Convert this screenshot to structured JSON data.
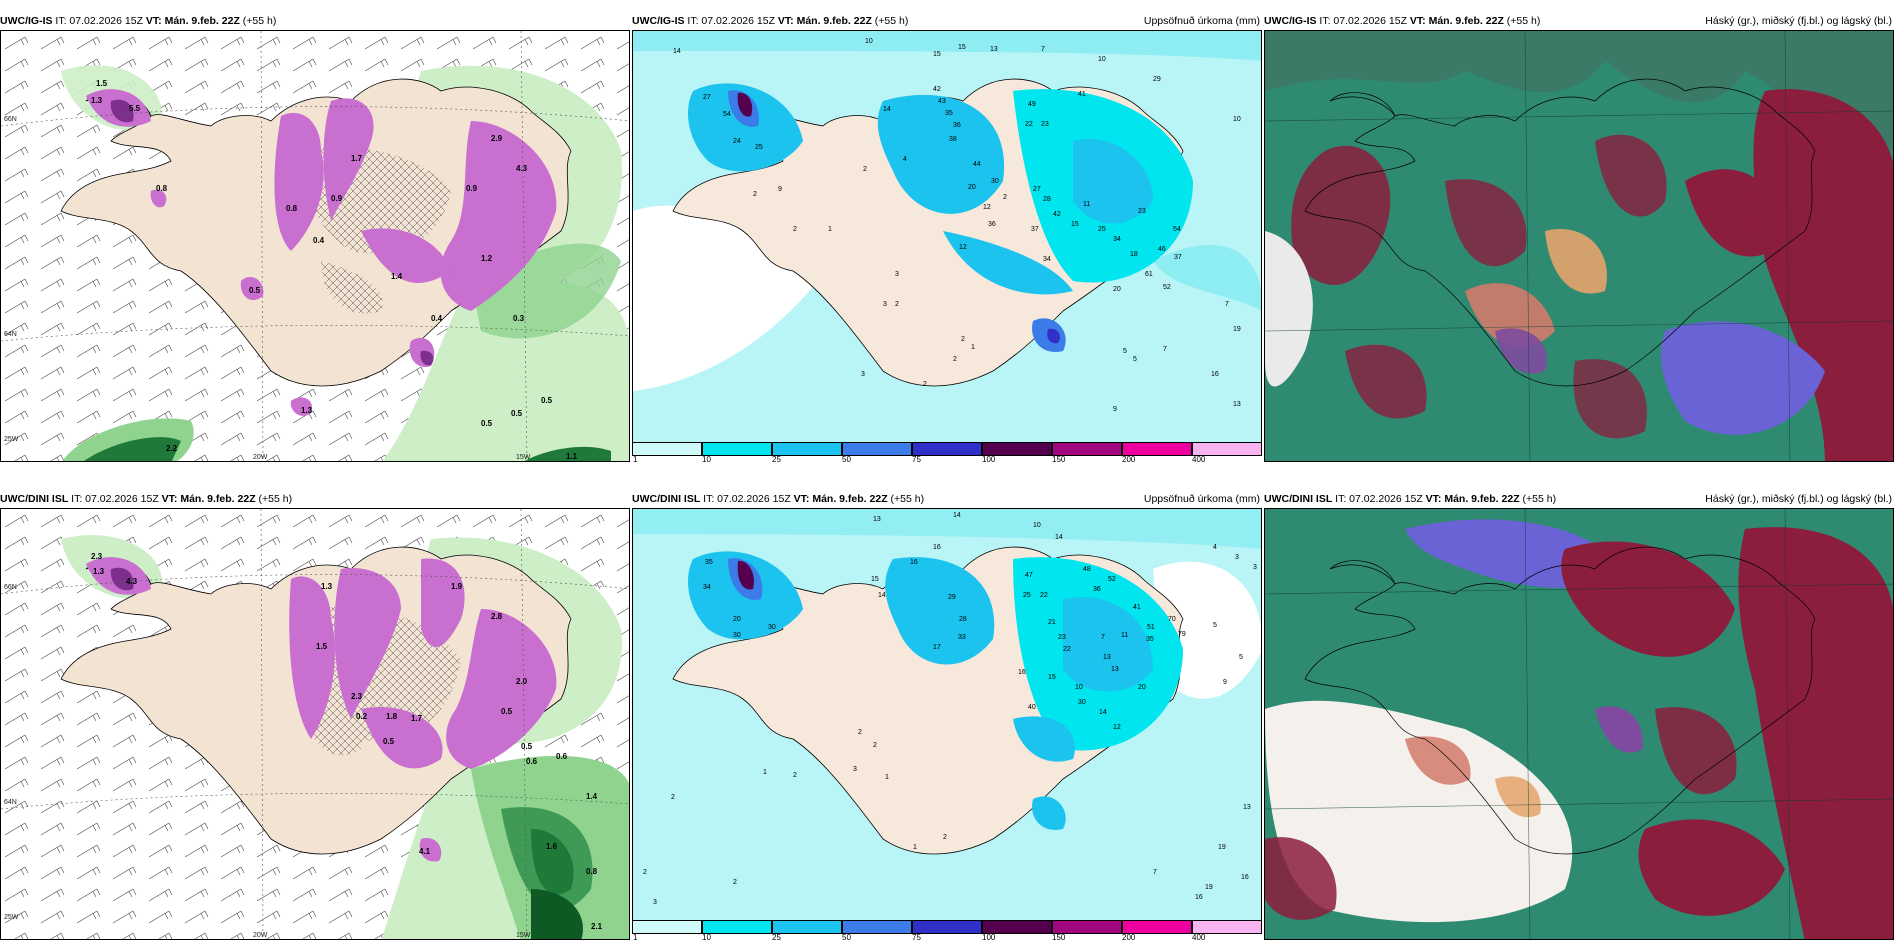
{
  "panels": [
    {
      "model": "UWC/IG-IS",
      "it": "IT: 07.02.2026 15Z",
      "vt": "VT: Mán. 9.feb. 22Z",
      "lead": "(+55 h)",
      "right": "",
      "lat1": "66N",
      "lat2": "64N",
      "lat3": "25W",
      "lon1": "20W",
      "lon2": "15W",
      "values": [
        "1.5",
        "1.3",
        "5.5",
        "0.8",
        "0.4",
        "1.7",
        "0.8",
        "2.9",
        "4.3",
        "0.9",
        "1.2",
        "0.5",
        "0.4",
        "1.3",
        "0.5",
        "0.5",
        "0.5",
        "2.2",
        "1.1",
        "1.4",
        "0.9",
        "0.3"
      ]
    },
    {
      "model": "UWC/IG-IS",
      "it": "IT: 07.02.2026 15Z",
      "vt": "VT: Mán. 9.feb. 22Z",
      "lead": "(+55 h)",
      "right": "Uppsöfnuð úrkoma (mm)",
      "values": [
        "14",
        "10",
        "15",
        "15",
        "13",
        "7",
        "42",
        "27",
        "54",
        "24",
        "25",
        "43",
        "35",
        "36",
        "38",
        "49",
        "22",
        "23",
        "41",
        "29",
        "2",
        "4",
        "1",
        "2",
        "2",
        "14",
        "9",
        "2",
        "20",
        "30",
        "10",
        "12",
        "44",
        "27",
        "28",
        "11",
        "12",
        "34",
        "36",
        "37",
        "42",
        "15",
        "25",
        "34",
        "23",
        "18",
        "54",
        "46",
        "37",
        "61",
        "52",
        "20",
        "5",
        "3",
        "3",
        "2",
        "2",
        "1",
        "2",
        "3",
        "2",
        "16",
        "5",
        "7",
        "9",
        "13",
        "19",
        "7",
        "10"
      ]
    },
    {
      "model": "UWC/IG-IS",
      "it": "IT: 07.02.2026 15Z",
      "vt": "VT: Mán. 9.feb. 22Z",
      "lead": "(+55 h)",
      "right": "Háský (gr.), miðský (fj.bl.) og lágský (bl.)"
    },
    {
      "model": "UWC/DINI ISL",
      "it": "IT: 07.02.2026 15Z",
      "vt": "VT: Mán. 9.feb. 22Z",
      "lead": "(+55 h)",
      "right": "",
      "lat1": "66N",
      "lat2": "64N",
      "lat3": "25W",
      "lon1": "20W",
      "lon2": "15W",
      "values": [
        "2.3",
        "1.3",
        "4.3",
        "1.9",
        "2.8",
        "1.3",
        "1.5",
        "2.3",
        "0.5",
        "1.8",
        "2.0",
        "1.7",
        "0.5",
        "0.6",
        "0.6",
        "1.4",
        "1.6",
        "0.8",
        "2.1",
        "4.1",
        "0.2",
        "0.5"
      ]
    },
    {
      "model": "UWC/DINI ISL",
      "it": "IT: 07.02.2026 15Z",
      "vt": "VT: Mán. 9.feb. 22Z",
      "lead": "(+55 h)",
      "right": "Uppsöfnuð úrkoma (mm)",
      "values": [
        "13",
        "14",
        "10",
        "14",
        "16",
        "35",
        "34",
        "30",
        "20",
        "15",
        "14",
        "16",
        "29",
        "28",
        "47",
        "25",
        "22",
        "48",
        "36",
        "52",
        "30",
        "17",
        "33",
        "21",
        "23",
        "22",
        "7",
        "11",
        "16",
        "15",
        "10",
        "13",
        "13",
        "40",
        "30",
        "14",
        "12",
        "20",
        "41",
        "51",
        "35",
        "70",
        "79",
        "9",
        "5",
        "3",
        "4",
        "2",
        "2",
        "1",
        "2",
        "3",
        "1",
        "2",
        "2",
        "3",
        "2",
        "16",
        "19",
        "19",
        "13",
        "7",
        "16",
        "5",
        "3",
        "1",
        "2"
      ]
    },
    {
      "model": "UWC/DINI ISL",
      "it": "IT: 07.02.2026 15Z",
      "vt": "VT: Mán. 9.feb. 22Z",
      "lead": "(+55 h)",
      "right": "Háský (gr.), miðský (fj.bl.) og lágský (bl.)"
    }
  ],
  "colorbar": {
    "labels": [
      "1",
      "10",
      "25",
      "50",
      "75",
      "100",
      "150",
      "200",
      "400"
    ],
    "colors": [
      "#cffafa",
      "#00e5ee",
      "#1cc3ee",
      "#3b7ce8",
      "#3030c8",
      "#55004f",
      "#a0067e",
      "#ee00a0",
      "#f8b4f0"
    ]
  },
  "colors": {
    "land": "#f3e3d3",
    "ocean_precip": "#b9f5f7",
    "green_light": "#cdeec7",
    "green_mid": "#8fd38f",
    "green_dark": "#1f7a3a",
    "magenta": "#c86fd0",
    "purple": "#7e2f8e",
    "cloud_high": "#2f8a72",
    "cloud_mid": "#8b1d3d",
    "cloud_low": "#6a63d6"
  }
}
